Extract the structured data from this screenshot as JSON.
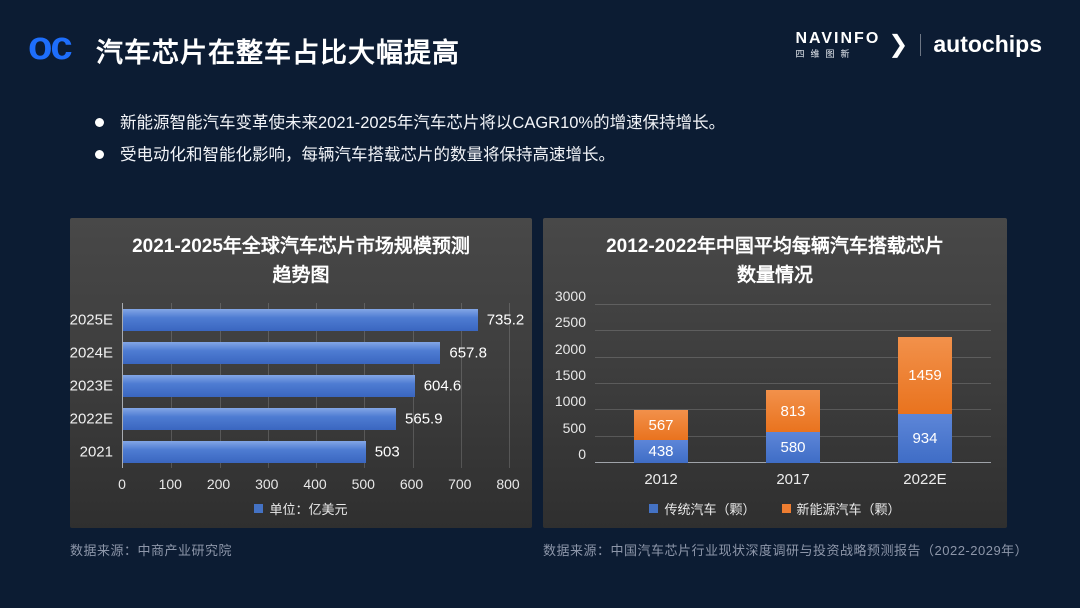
{
  "header": {
    "logo_text": "oc",
    "title": "汽车芯片在整车占比大幅提高",
    "brand": {
      "navinfo_en": "NAVINFO",
      "navinfo_cn": "四维图新",
      "chevron": "❯",
      "autochips": "autochips"
    }
  },
  "bullets": [
    "新能源智能汽车变革使未来2021-2025年汽车芯片将以CAGR10%的增速保持增长。",
    "受电动化和智能化影响，每辆汽车搭载芯片的数量将保持高速增长。"
  ],
  "colors": {
    "background": "#0c1c33",
    "logo_blue": "#1e6efb",
    "bar_blue": "#4472C4",
    "bar_orange": "#ED7D31",
    "panel_gray": "#3c3c3c"
  },
  "chart_data": [
    {
      "type": "bar",
      "orientation": "horizontal",
      "title": "2021-2025年全球汽车芯片市场规模预测",
      "title_line2": "趋势图",
      "categories": [
        "2025E",
        "2024E",
        "2023E",
        "2022E",
        "2021"
      ],
      "values": [
        735.2,
        657.8,
        604.6,
        565.9,
        503
      ],
      "value_labels": [
        "735.2",
        "657.8",
        "604.6",
        "565.9",
        "503"
      ],
      "xlim": [
        0,
        800
      ],
      "xticks": [
        0,
        100,
        200,
        300,
        400,
        500,
        600,
        700,
        800
      ],
      "grid": true,
      "bar_color": "#4472C4",
      "legend": [
        {
          "label": "单位：亿美元",
          "color": "#4472C4"
        }
      ],
      "legend_position": "bottom",
      "source": "数据来源：中商产业研究院"
    },
    {
      "type": "bar",
      "stacked": true,
      "title": "2012-2022年中国平均每辆汽车搭载芯片",
      "title_line2": "数量情况",
      "categories": [
        "2012",
        "2017",
        "2022E"
      ],
      "series": [
        {
          "name": "传统汽车（颗）",
          "color": "#4472C4",
          "values": [
            438,
            580,
            934
          ]
        },
        {
          "name": "新能源汽车（颗）",
          "color": "#ED7D31",
          "values": [
            567,
            813,
            1459
          ]
        }
      ],
      "ylim": [
        0,
        3000
      ],
      "yticks": [
        0,
        500,
        1000,
        1500,
        2000,
        2500,
        3000
      ],
      "grid": true,
      "legend_position": "bottom",
      "source": "数据来源：中国汽车芯片行业现状深度调研与投资战略预测报告（2022-2029年）"
    }
  ]
}
